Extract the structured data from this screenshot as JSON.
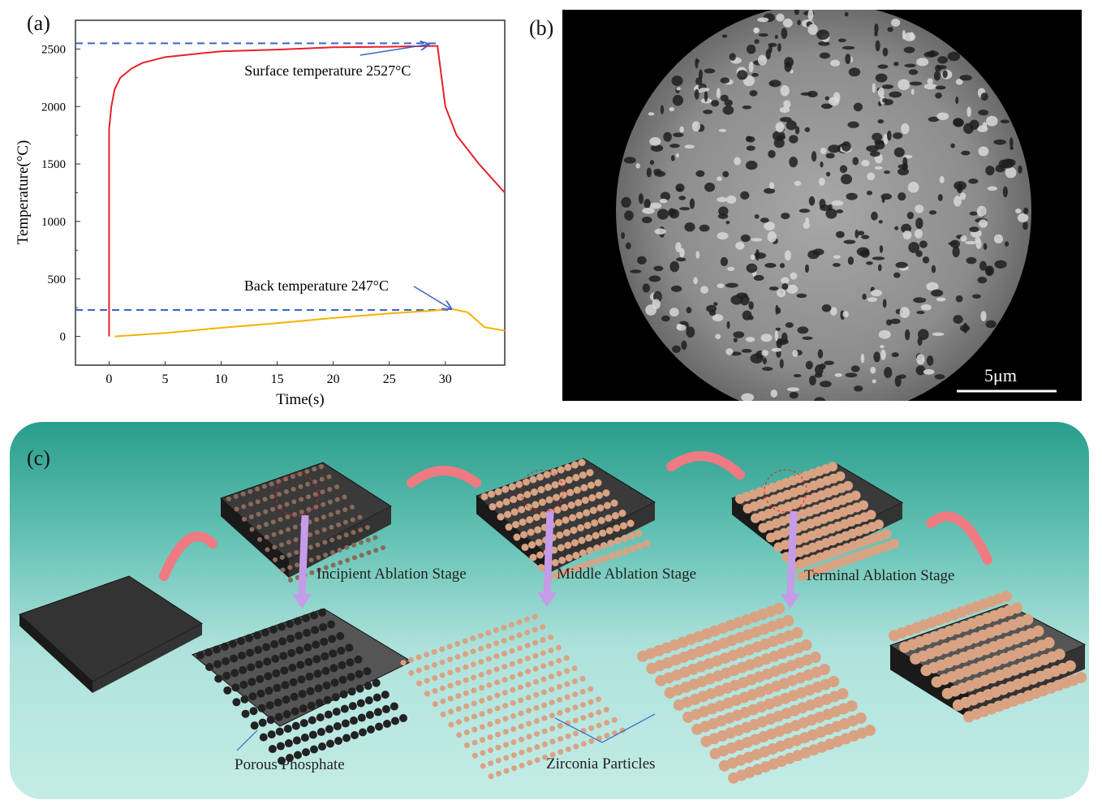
{
  "panels": {
    "a": "(a)",
    "b": "(b)",
    "c": "(c)"
  },
  "chart_data": {
    "type": "line",
    "xlabel": "Time(s)",
    "ylabel": "Temperature(°C)",
    "xlim": [
      -3,
      35.3
    ],
    "ylim": [
      -250,
      2750
    ],
    "xticks": [
      0,
      5,
      10,
      15,
      20,
      25,
      30
    ],
    "yticks": [
      0,
      500,
      1000,
      1500,
      2000,
      2500
    ],
    "grid": false,
    "series": [
      {
        "name": "Surface temperature",
        "color": "#e8202a",
        "x": [
          0,
          0,
          0.2,
          0.5,
          1,
          2,
          3,
          5,
          10,
          15,
          20,
          25,
          29,
          29.3,
          30,
          31,
          33,
          35.3
        ],
        "y": [
          0,
          1800,
          2000,
          2150,
          2250,
          2330,
          2380,
          2430,
          2480,
          2495,
          2515,
          2520,
          2527,
          2527,
          2000,
          1750,
          1500,
          1250
        ]
      },
      {
        "name": "Back temperature",
        "color": "#f5b300",
        "x": [
          0.5,
          5,
          10,
          15,
          20,
          25,
          29,
          30.5,
          32,
          32.8,
          33.5,
          35.3
        ],
        "y": [
          0,
          30,
          75,
          115,
          160,
          200,
          225,
          240,
          210,
          140,
          80,
          50
        ]
      }
    ],
    "reference_lines": [
      {
        "y": 2550,
        "xmax": 29.3,
        "color": "#3a64c8"
      },
      {
        "y": 230,
        "xmax": 30.5,
        "color": "#3a64c8"
      }
    ],
    "annotations": [
      {
        "text": "Surface temperature 2527°C",
        "x": 19.5,
        "y": 2270,
        "arrow_to": [
          28.5,
          2540
        ]
      },
      {
        "text": "Back temperature 247°C",
        "x": 18.5,
        "y": 400,
        "arrow_to": [
          30.5,
          240
        ]
      }
    ]
  },
  "sem": {
    "scale_bar": "5μm"
  },
  "diagram": {
    "stages": [
      "Incipient Ablation Stage",
      "Middle Ablation Stage",
      "Terminal Ablation Stage"
    ],
    "labels": {
      "porous": "Porous Phosphate",
      "zirconia": "Zirconia Particles"
    },
    "colors": {
      "substrate": "#2b2b2b",
      "particle": "#d9a383",
      "arrow": "#f07a82",
      "down_arrow": "#c69be8"
    }
  }
}
